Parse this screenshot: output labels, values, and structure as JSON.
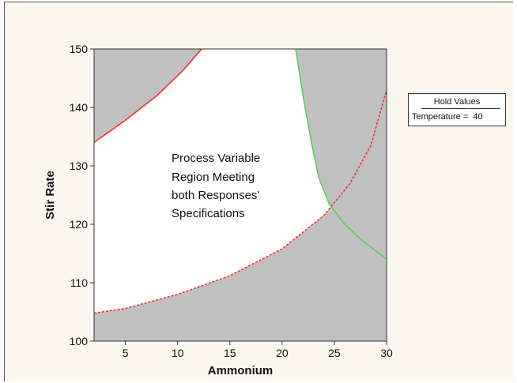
{
  "chart_data": {
    "type": "contour",
    "xlabel": "Ammonium",
    "ylabel": "Stir Rate",
    "xlim": [
      2,
      30
    ],
    "ylim": [
      100,
      150
    ],
    "xticks": [
      5,
      10,
      15,
      20,
      25,
      30
    ],
    "yticks": [
      100,
      110,
      120,
      130,
      140,
      150
    ],
    "grid": false,
    "legend": {
      "position": "right",
      "title": "Hold Values",
      "entries": [
        {
          "label": "Temperature",
          "value": "40"
        }
      ]
    },
    "annotation": [
      "Process Variable",
      "Region Meeting",
      "both Responses'",
      "Specifications"
    ],
    "colors": {
      "feasible_region": "#ffffff",
      "infeasible_region": "#c0c0c0",
      "red_contour": "#ff2020",
      "green_contour": "#55cc55"
    },
    "contours": [
      {
        "color": "red",
        "style": "solid",
        "points": [
          [
            2,
            134
          ],
          [
            5,
            137.8
          ],
          [
            8,
            142
          ],
          [
            10.5,
            146.3
          ],
          [
            12.3,
            150
          ]
        ]
      },
      {
        "color": "red",
        "style": "dashed",
        "points": [
          [
            2,
            104.8
          ],
          [
            5,
            105.6
          ],
          [
            10,
            108
          ],
          [
            15,
            111.2
          ],
          [
            20,
            115.8
          ],
          [
            24,
            121.5
          ],
          [
            26.5,
            127
          ],
          [
            28.5,
            133.5
          ],
          [
            30,
            143
          ]
        ]
      },
      {
        "color": "green",
        "style": "solid",
        "points": [
          [
            21.3,
            150
          ],
          [
            22,
            142
          ],
          [
            22.8,
            134
          ],
          [
            23.5,
            128
          ],
          [
            24.5,
            123.5
          ],
          [
            26,
            120
          ],
          [
            27.5,
            117.5
          ],
          [
            30,
            114
          ]
        ]
      }
    ]
  }
}
